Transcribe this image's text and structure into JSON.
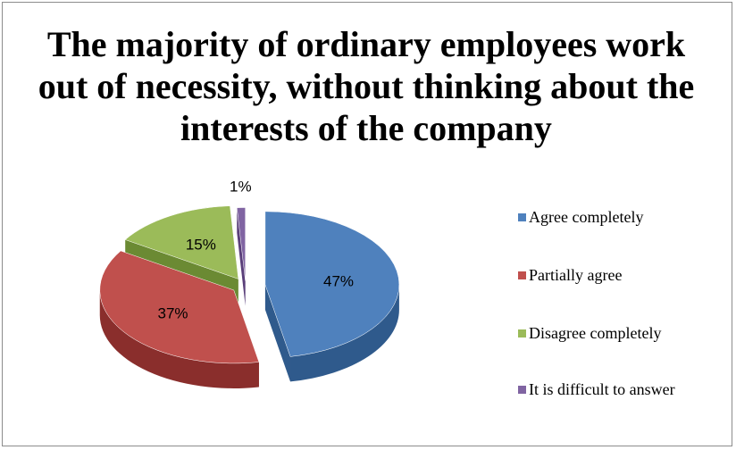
{
  "chart_data": {
    "type": "pie",
    "title": "The majority of ordinary employees work out of necessity, without thinking about  the interests of the company",
    "categories": [
      "Agree completely",
      "Partially agree",
      "Disagree completely",
      "It is difficult to answer"
    ],
    "values": [
      47,
      37,
      15,
      1
    ],
    "data_labels": [
      "47%",
      "37%",
      "15%",
      "1%"
    ],
    "colors": [
      "#4f81bd",
      "#c0504d",
      "#9bbb59",
      "#8064a2"
    ],
    "dark_colors": [
      "#2f5a8c",
      "#8a2e2c",
      "#6b8a33",
      "#5a3f7a"
    ],
    "legend_position": "right",
    "style": "3d exploded"
  }
}
